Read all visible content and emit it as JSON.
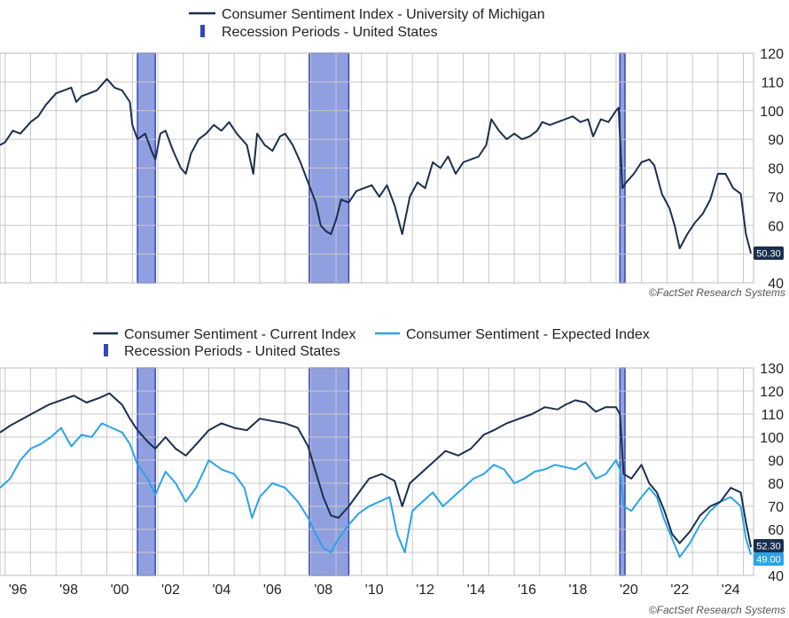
{
  "colors": {
    "sentiment": "#1b2f4e",
    "current": "#1b2f4e",
    "expected": "#2aa3e8",
    "recession_fill": "#6b7fd6",
    "recession_edge": "#3347b8",
    "grid": "#c8c8c8",
    "badge_dark": "#1b2f4e",
    "badge_light": "#2aa3e8"
  },
  "recessions": [
    [
      2001.2,
      2001.9
    ],
    [
      2007.95,
      2009.5
    ],
    [
      2020.15,
      2020.35
    ]
  ],
  "credit": "©FactSet Research Systems",
  "x_tick_labels": [
    "'96",
    "'98",
    "'00",
    "'02",
    "'04",
    "'06",
    "'08",
    "'10",
    "'12",
    "'14",
    "'16",
    "'18",
    "'20",
    "'22",
    "'24"
  ],
  "chart_data": [
    {
      "type": "line",
      "title": "",
      "legend": [
        {
          "label": "Consumer Sentiment Index - University of Michigan",
          "kind": "line"
        },
        {
          "label": "Recession Periods - United States",
          "kind": "bar"
        }
      ],
      "ylim": [
        40,
        120
      ],
      "yticks": [
        "40",
        "50",
        "60",
        "70",
        "80",
        "90",
        "100",
        "110",
        "120"
      ],
      "xlim": [
        1995.8,
        2025.4
      ],
      "end_label": "50.30",
      "series": [
        {
          "name": "Consumer Sentiment Index - University of Michigan",
          "x": [
            1995.8,
            1996.0,
            1996.3,
            1996.6,
            1997.0,
            1997.3,
            1997.6,
            1998.0,
            1998.3,
            1998.6,
            1998.8,
            1999.0,
            1999.3,
            1999.6,
            2000.0,
            2000.3,
            2000.6,
            2000.9,
            2001.0,
            2001.2,
            2001.5,
            2001.75,
            2001.9,
            2002.1,
            2002.3,
            2002.6,
            2002.9,
            2003.1,
            2003.3,
            2003.6,
            2003.9,
            2004.2,
            2004.5,
            2004.8,
            2005.1,
            2005.5,
            2005.75,
            2005.9,
            2006.2,
            2006.5,
            2006.8,
            2007.0,
            2007.3,
            2007.6,
            2007.9,
            2008.2,
            2008.4,
            2008.6,
            2008.8,
            2009.0,
            2009.2,
            2009.5,
            2009.8,
            2010.1,
            2010.4,
            2010.7,
            2011.0,
            2011.3,
            2011.6,
            2011.9,
            2012.2,
            2012.5,
            2012.8,
            2013.1,
            2013.4,
            2013.7,
            2014.0,
            2014.3,
            2014.6,
            2014.9,
            2015.1,
            2015.4,
            2015.7,
            2016.0,
            2016.3,
            2016.6,
            2016.9,
            2017.1,
            2017.4,
            2017.7,
            2018.0,
            2018.3,
            2018.6,
            2018.9,
            2019.1,
            2019.4,
            2019.7,
            2020.0,
            2020.1,
            2020.25,
            2020.4,
            2020.7,
            2021.0,
            2021.3,
            2021.5,
            2021.8,
            2022.1,
            2022.3,
            2022.5,
            2022.8,
            2023.1,
            2023.4,
            2023.7,
            2024.0,
            2024.3,
            2024.6,
            2024.9,
            2025.1,
            2025.3
          ],
          "values": [
            88,
            89,
            93,
            92,
            96,
            98,
            102,
            106,
            107,
            108,
            103,
            105,
            106,
            107,
            111,
            108,
            107,
            103,
            95,
            90,
            92,
            86,
            83,
            92,
            93,
            86,
            80,
            78,
            85,
            90,
            92,
            95,
            93,
            96,
            92,
            88,
            78,
            92,
            88,
            86,
            91,
            92,
            88,
            82,
            75,
            68,
            60,
            58,
            57,
            62,
            69,
            68,
            72,
            73,
            74,
            70,
            74,
            67,
            57,
            70,
            75,
            73,
            82,
            80,
            84,
            78,
            82,
            83,
            84,
            88,
            97,
            93,
            90,
            92,
            90,
            91,
            93,
            96,
            95,
            96,
            97,
            98,
            96,
            97,
            91,
            97,
            96,
            100,
            101,
            73,
            75,
            78,
            82,
            83,
            81,
            71,
            66,
            60,
            52,
            57,
            61,
            64,
            69,
            78,
            78,
            73,
            71,
            57,
            50.3
          ]
        }
      ]
    },
    {
      "type": "line",
      "title": "",
      "legend": [
        {
          "label": "Consumer Sentiment - Current Index",
          "kind": "line"
        },
        {
          "label": "Consumer Sentiment - Expected Index",
          "kind": "line"
        },
        {
          "label": "Recession Periods - United States",
          "kind": "bar"
        }
      ],
      "ylim": [
        40,
        130
      ],
      "yticks": [
        "40",
        "50",
        "60",
        "70",
        "80",
        "90",
        "100",
        "110",
        "120",
        "130"
      ],
      "xlim": [
        1995.8,
        2025.4
      ],
      "end_labels": [
        "52.30",
        "49.00"
      ],
      "series": [
        {
          "name": "Consumer Sentiment - Current Index",
          "x": [
            1995.8,
            1996.2,
            1996.7,
            1997.2,
            1997.7,
            1998.2,
            1998.7,
            1999.2,
            1999.7,
            2000.1,
            2000.6,
            2000.9,
            2001.2,
            2001.6,
            2001.9,
            2002.3,
            2002.7,
            2003.1,
            2003.6,
            2004.0,
            2004.5,
            2005.0,
            2005.5,
            2006.0,
            2006.5,
            2007.0,
            2007.5,
            2007.9,
            2008.2,
            2008.5,
            2008.8,
            2009.1,
            2009.5,
            2009.9,
            2010.3,
            2010.8,
            2011.3,
            2011.6,
            2011.9,
            2012.3,
            2012.8,
            2013.3,
            2013.8,
            2014.3,
            2014.8,
            2015.2,
            2015.7,
            2016.2,
            2016.7,
            2017.2,
            2017.7,
            2018.0,
            2018.4,
            2018.8,
            2019.2,
            2019.6,
            2020.0,
            2020.15,
            2020.3,
            2020.6,
            2021.0,
            2021.3,
            2021.6,
            2021.9,
            2022.2,
            2022.5,
            2022.9,
            2023.3,
            2023.7,
            2024.1,
            2024.5,
            2024.9,
            2025.1,
            2025.3
          ],
          "values": [
            102,
            105,
            108,
            111,
            114,
            116,
            118,
            115,
            117,
            119,
            114,
            108,
            103,
            98,
            95,
            100,
            95,
            92,
            98,
            103,
            106,
            104,
            103,
            108,
            107,
            106,
            104,
            96,
            85,
            74,
            66,
            65,
            70,
            76,
            82,
            84,
            81,
            70,
            80,
            84,
            89,
            94,
            92,
            95,
            101,
            103,
            106,
            108,
            110,
            113,
            112,
            114,
            116,
            115,
            111,
            113,
            113,
            110,
            84,
            82,
            88,
            80,
            76,
            68,
            58,
            54,
            59,
            66,
            70,
            72,
            78,
            76,
            63,
            52.3
          ]
        },
        {
          "name": "Consumer Sentiment - Expected Index",
          "x": [
            1995.8,
            1996.2,
            1996.6,
            1997.0,
            1997.4,
            1997.8,
            1998.2,
            1998.6,
            1999.0,
            1999.4,
            1999.8,
            2000.2,
            2000.6,
            2000.9,
            2001.2,
            2001.6,
            2001.9,
            2002.3,
            2002.7,
            2003.1,
            2003.5,
            2004.0,
            2004.5,
            2005.0,
            2005.4,
            2005.7,
            2006.0,
            2006.5,
            2007.0,
            2007.5,
            2007.9,
            2008.2,
            2008.5,
            2008.8,
            2009.1,
            2009.5,
            2009.9,
            2010.3,
            2010.7,
            2011.1,
            2011.4,
            2011.7,
            2012.0,
            2012.4,
            2012.8,
            2013.2,
            2013.6,
            2014.0,
            2014.4,
            2014.8,
            2015.2,
            2015.6,
            2016.0,
            2016.4,
            2016.8,
            2017.2,
            2017.6,
            2018.0,
            2018.4,
            2018.8,
            2019.2,
            2019.6,
            2020.0,
            2020.15,
            2020.3,
            2020.6,
            2021.0,
            2021.3,
            2021.6,
            2021.9,
            2022.2,
            2022.5,
            2022.9,
            2023.3,
            2023.7,
            2024.1,
            2024.5,
            2024.9,
            2025.1,
            2025.3
          ],
          "values": [
            78,
            82,
            90,
            95,
            97,
            100,
            104,
            96,
            101,
            100,
            106,
            104,
            102,
            97,
            88,
            82,
            75,
            85,
            80,
            72,
            78,
            90,
            86,
            84,
            78,
            65,
            74,
            80,
            78,
            72,
            65,
            58,
            52,
            50,
            56,
            62,
            67,
            70,
            72,
            74,
            58,
            50,
            68,
            72,
            76,
            70,
            74,
            78,
            82,
            84,
            88,
            86,
            80,
            82,
            85,
            86,
            88,
            87,
            86,
            89,
            82,
            84,
            90,
            86,
            70,
            68,
            74,
            78,
            74,
            64,
            56,
            48,
            54,
            62,
            68,
            72,
            74,
            70,
            56,
            49
          ]
        }
      ]
    }
  ]
}
